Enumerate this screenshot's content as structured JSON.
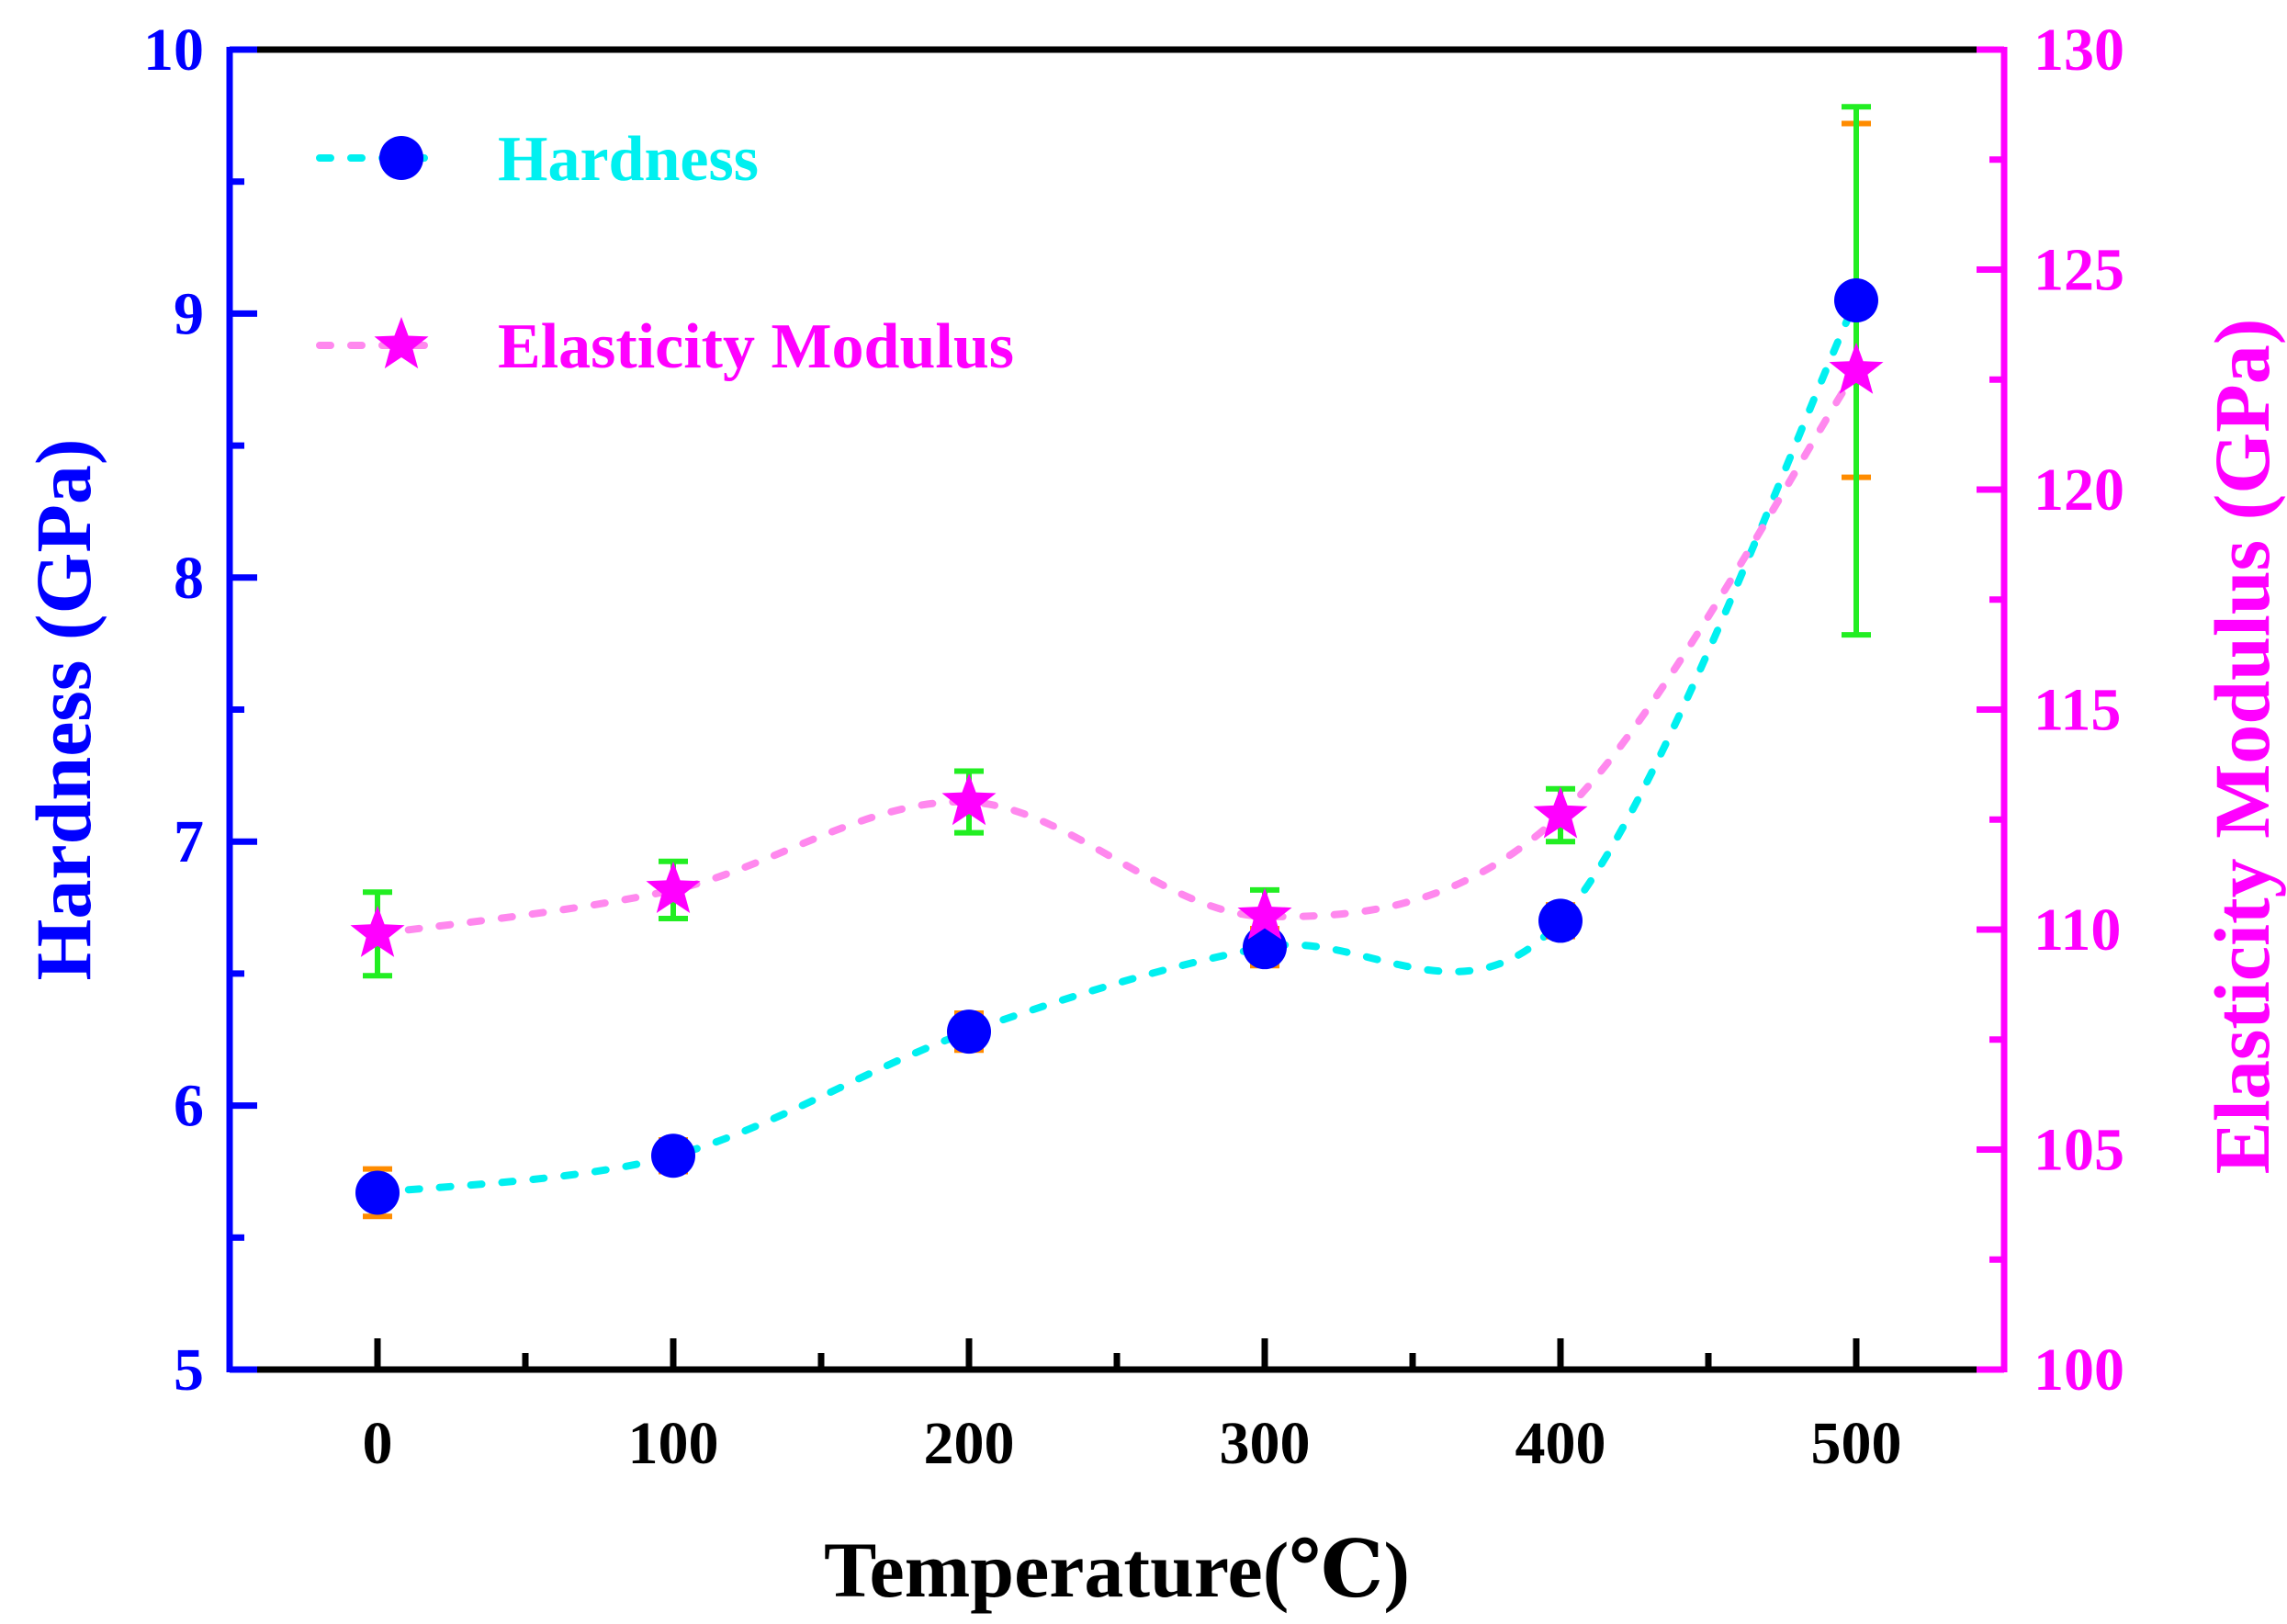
{
  "chart_data": {
    "type": "scatter",
    "xlabel": "Temperature(℃)",
    "xlim": [
      -50,
      550
    ],
    "x_ticks": [
      "0",
      "100",
      "200",
      "300",
      "400",
      "500"
    ],
    "x_tick_values": [
      0,
      100,
      200,
      300,
      400,
      500
    ],
    "left_axis": {
      "label": "Hardness (GPa)",
      "ylim": [
        5,
        10
      ],
      "ticks": [
        "5",
        "6",
        "7",
        "8",
        "9",
        "10"
      ],
      "tick_values": [
        5,
        6,
        7,
        8,
        9,
        10
      ],
      "color": "#0000ff"
    },
    "right_axis": {
      "label": "Elasticity Modulus (GPa)",
      "ylim": [
        100,
        130
      ],
      "ticks": [
        "100",
        "105",
        "110",
        "115",
        "120",
        "125",
        "130"
      ],
      "tick_values": [
        100,
        105,
        110,
        115,
        120,
        125,
        130
      ],
      "color": "#ff00ff"
    },
    "legend_position": "top-left",
    "series": [
      {
        "name": "Hardness",
        "axis": "left",
        "marker": "circle",
        "marker_color": "#0000ff",
        "line_color": "#00f0f0",
        "error_color": "#ff8c00",
        "x": [
          0,
          100,
          200,
          300,
          400,
          500
        ],
        "values": [
          5.67,
          5.81,
          6.28,
          6.6,
          6.7,
          9.05
        ],
        "errors": [
          0.09,
          0.06,
          0.07,
          0.07,
          0.06,
          0.67
        ]
      },
      {
        "name": "Elasticity Modulus",
        "axis": "right",
        "marker": "star",
        "marker_color": "#ff00ff",
        "line_color": "#ff88ee",
        "error_color": "#22ee22",
        "x": [
          0,
          100,
          200,
          300,
          400,
          500
        ],
        "values": [
          109.9,
          110.9,
          112.9,
          110.3,
          112.6,
          122.7
        ],
        "errors": [
          0.95,
          0.65,
          0.7,
          0.6,
          0.6,
          6.0
        ]
      }
    ]
  },
  "colors": {
    "frame": "#000000",
    "hardness_axis": "#0000ff",
    "modulus_axis": "#ff00ff",
    "legend_text": "#00f0f0 / #ff00ff"
  }
}
